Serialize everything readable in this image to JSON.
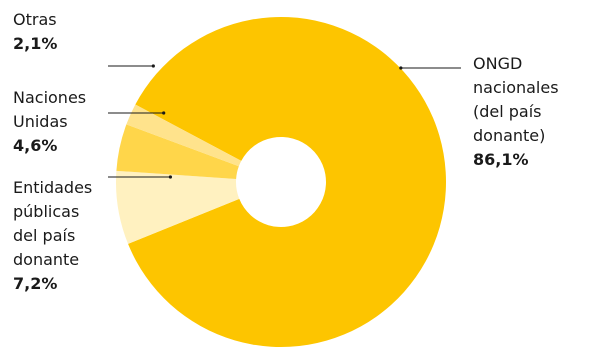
{
  "chart_data": {
    "type": "pie",
    "donut": true,
    "title": "",
    "slices": [
      {
        "label": "ONGD\nnacionales\n(del país\ndonante)",
        "value": 86.1,
        "value_label": "86,1%",
        "color": "#FDC500"
      },
      {
        "label": "Entidades\npúblicas\ndel país\ndonante",
        "value": 7.2,
        "value_label": "7,2%",
        "color": "#FFF1C0"
      },
      {
        "label": "Naciones\nUnidas",
        "value": 4.6,
        "value_label": "4,6%",
        "color": "#FFD64A"
      },
      {
        "label": "Otras",
        "value": 2.1,
        "value_label": "2,1%",
        "color": "#FFE38C"
      }
    ],
    "legend": "none"
  }
}
